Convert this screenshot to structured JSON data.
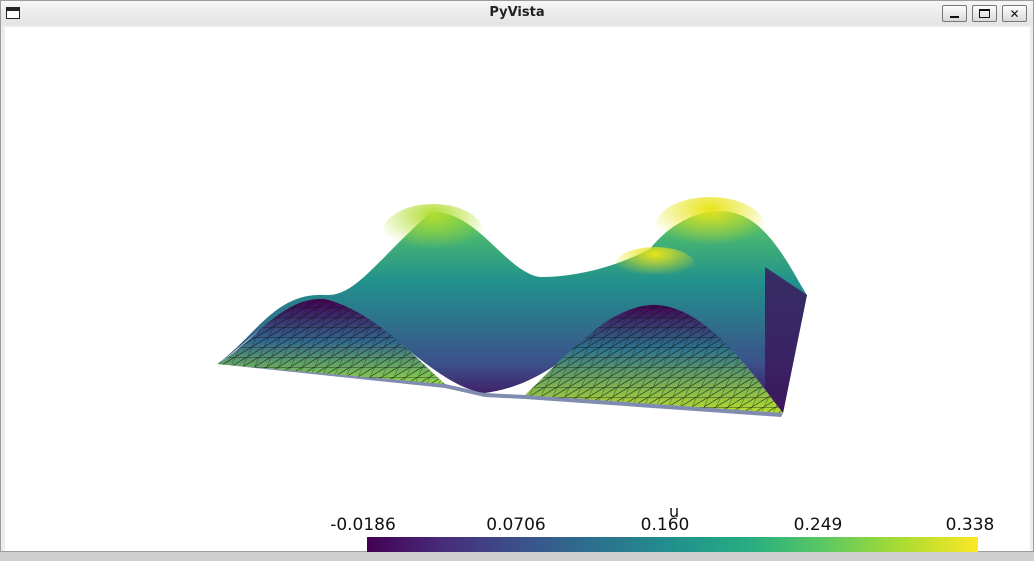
{
  "window": {
    "title": "PyVista",
    "buttons": {
      "minimize": "minimize",
      "maximize": "maximize",
      "close": "✕"
    }
  },
  "plot": {
    "scalar_name": "u",
    "colormap": "viridis",
    "colorbar_labels": [
      "-0.0186",
      "0.0706",
      "0.160",
      "0.249",
      "0.338"
    ],
    "colors": {
      "low": "#440154",
      "mid": "#21908d",
      "high": "#fde725",
      "background": "#ffffff"
    }
  }
}
